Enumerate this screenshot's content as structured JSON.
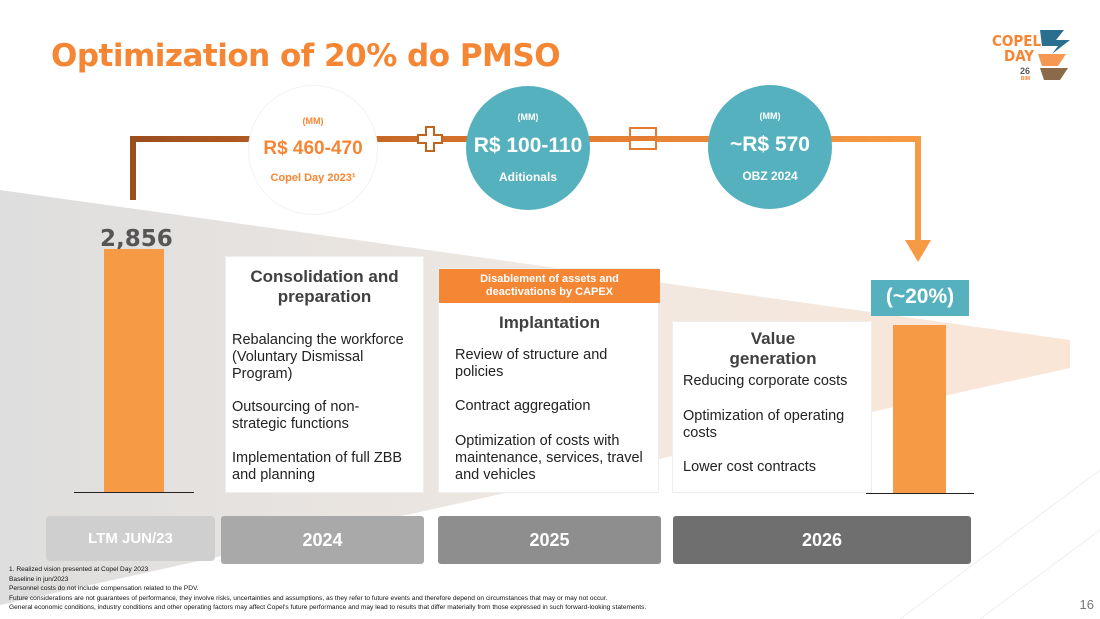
{
  "title": "Optimization of 20% do PMSO",
  "logo": {
    "line1": "COPEL",
    "line2": "DAY",
    "line3": "26",
    "line4": "BIM"
  },
  "circles": [
    {
      "mm": "(MM)",
      "value": "R$ 460-470",
      "sub": "Copel Day 2023¹"
    },
    {
      "mm": "(MM)",
      "value": "R$ 100-110",
      "sub": "Aditionals"
    },
    {
      "mm": "(MM)",
      "value": "~R$ 570",
      "sub": "OBZ 2024"
    }
  ],
  "operators": {
    "plus": "+",
    "equals": "="
  },
  "ltm_value": "2,856",
  "reduction": "(~20%)",
  "cards": {
    "c2024": {
      "heading": "Consolidation and preparation",
      "items": [
        "Rebalancing the workforce (Voluntary Dismissal Program)",
        "Outsourcing of non-strategic functions",
        "Implementation of full ZBB and planning"
      ]
    },
    "c2025": {
      "tag": "Disablement of assets and deactivations by CAPEX",
      "heading": "Implantation",
      "items": [
        "Review of structure and policies",
        "Contract aggregation",
        "Optimization of costs with maintenance, services, travel and vehicles"
      ]
    },
    "c2026": {
      "heading": "Value generation",
      "items": [
        "Reducing corporate costs",
        "Optimization of operating costs",
        "Lower cost contracts"
      ]
    }
  },
  "years": [
    "LTM JUN/23",
    "2024",
    "2025",
    "2026"
  ],
  "footnotes": [
    "1.     Realized vision presented at Copel Day 2023",
    "Baseline in jun/2023",
    "Personnel costs do not include compensation related to the PDV.",
    "Future considerations are not guarantees of performance, they involve risks, uncertainties and assumptions, as they refer to future events and therefore depend on circumstances that may or may not occur.",
    "General economic conditions, industry conditions and other operating factors may affect Copel's future performance and may lead to results that differ materially from those expressed in such forward-looking statements."
  ],
  "page_number": "16",
  "colors": {
    "orange": "#f58634",
    "teal": "#56b1be",
    "brown": "#9b4d1e",
    "gray_year": "#a9a9a9",
    "dark_year": "#6f6f6f"
  }
}
